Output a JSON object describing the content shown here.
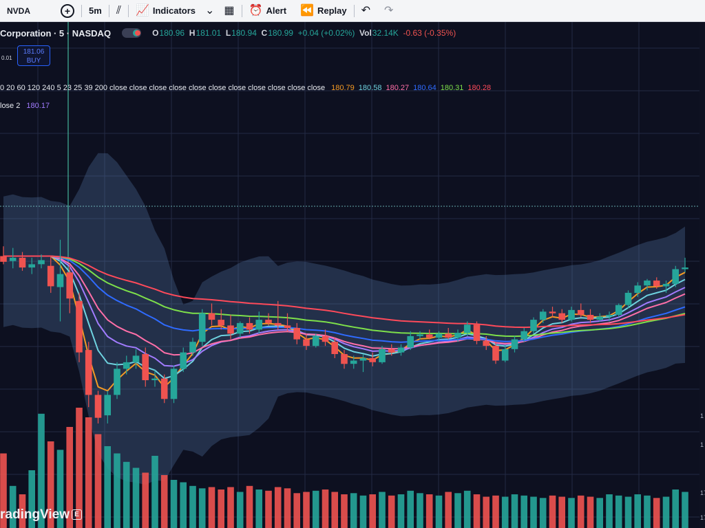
{
  "toolbar": {
    "symbol": "NVDA",
    "interval": "5m",
    "indicators_label": "Indicators",
    "alert_label": "Alert",
    "replay_label": "Replay"
  },
  "legend": {
    "title": "Corporation · 5 · NASDAQ",
    "open_label": "O",
    "open": "180.96",
    "high_label": "H",
    "high": "181.01",
    "low_label": "L",
    "low": "180.94",
    "close_label": "C",
    "close": "180.99",
    "change": "+0.04 (+0.02%)",
    "vol_label": "Vol",
    "vol": "32.14K",
    "change2": "-0.63 (-0.35%)"
  },
  "buy_box": {
    "price": "181.06",
    "label": "BUY"
  },
  "left_price": "0.01",
  "indicator_legend": {
    "params": "0 20 60 120 240 5 23 25 39 200 close close close close close close close close close close close",
    "values": [
      {
        "value": "180.79",
        "color": "#f59a23"
      },
      {
        "value": "180.58",
        "color": "#6fd3e0"
      },
      {
        "value": "180.27",
        "color": "#ff6fa8"
      },
      {
        "value": "180.64",
        "color": "#2f6bff"
      },
      {
        "value": "180.31",
        "color": "#7ee04a"
      },
      {
        "value": "180.28",
        "color": "#ff4a5a"
      }
    ],
    "row3_label": "lose 2",
    "row3_value": "180.17",
    "row3_color": "#a27cff"
  },
  "watermark": {
    "text": "radingView",
    "badge": "E"
  },
  "axis_labels": [
    "1",
    "1",
    "17",
    "17"
  ],
  "colors": {
    "background": "#0d1020",
    "bull": "#26a69a",
    "bear": "#ef5350",
    "band": "#5f86b8"
  },
  "chart_data": {
    "type": "candlestick",
    "symbol": "NVDA",
    "interval": "5m",
    "ylim": [
      179.0,
      182.2
    ],
    "candles": [
      {
        "o": 181.0,
        "h": 181.12,
        "l": 180.9,
        "c": 180.93
      },
      {
        "o": 180.94,
        "h": 181.1,
        "l": 180.85,
        "c": 180.98
      },
      {
        "o": 180.98,
        "h": 181.05,
        "l": 180.82,
        "c": 180.86
      },
      {
        "o": 180.86,
        "h": 180.98,
        "l": 180.78,
        "c": 180.9
      },
      {
        "o": 180.9,
        "h": 181.02,
        "l": 180.85,
        "c": 180.95
      },
      {
        "o": 180.88,
        "h": 181.0,
        "l": 180.55,
        "c": 180.63
      },
      {
        "o": 180.62,
        "h": 181.2,
        "l": 180.2,
        "c": 180.78
      },
      {
        "o": 180.8,
        "h": 180.9,
        "l": 180.3,
        "c": 180.48
      },
      {
        "o": 180.45,
        "h": 180.55,
        "l": 179.7,
        "c": 179.82
      },
      {
        "o": 179.85,
        "h": 179.95,
        "l": 179.15,
        "c": 179.3
      },
      {
        "o": 179.3,
        "h": 179.35,
        "l": 178.95,
        "c": 179.02
      },
      {
        "o": 179.05,
        "h": 179.35,
        "l": 178.95,
        "c": 179.3
      },
      {
        "o": 179.3,
        "h": 179.7,
        "l": 179.25,
        "c": 179.62
      },
      {
        "o": 179.62,
        "h": 179.78,
        "l": 179.55,
        "c": 179.7
      },
      {
        "o": 179.7,
        "h": 179.86,
        "l": 179.62,
        "c": 179.78
      },
      {
        "o": 179.8,
        "h": 179.88,
        "l": 179.4,
        "c": 179.48
      },
      {
        "o": 179.48,
        "h": 179.6,
        "l": 179.4,
        "c": 179.5
      },
      {
        "o": 179.5,
        "h": 179.55,
        "l": 179.2,
        "c": 179.25
      },
      {
        "o": 179.25,
        "h": 179.66,
        "l": 179.2,
        "c": 179.62
      },
      {
        "o": 179.62,
        "h": 179.88,
        "l": 179.58,
        "c": 179.82
      },
      {
        "o": 179.82,
        "h": 180.0,
        "l": 179.78,
        "c": 179.95
      },
      {
        "o": 179.95,
        "h": 180.35,
        "l": 179.9,
        "c": 180.3
      },
      {
        "o": 180.3,
        "h": 180.42,
        "l": 180.15,
        "c": 180.22
      },
      {
        "o": 180.22,
        "h": 180.35,
        "l": 180.1,
        "c": 180.15
      },
      {
        "o": 180.15,
        "h": 180.28,
        "l": 179.98,
        "c": 180.05
      },
      {
        "o": 180.05,
        "h": 180.2,
        "l": 180.0,
        "c": 180.18
      },
      {
        "o": 180.18,
        "h": 180.25,
        "l": 180.05,
        "c": 180.1
      },
      {
        "o": 180.1,
        "h": 180.32,
        "l": 180.05,
        "c": 180.22
      },
      {
        "o": 180.22,
        "h": 180.3,
        "l": 180.15,
        "c": 180.18
      },
      {
        "o": 180.18,
        "h": 180.45,
        "l": 180.1,
        "c": 180.15
      },
      {
        "o": 180.15,
        "h": 180.3,
        "l": 180.08,
        "c": 180.12
      },
      {
        "o": 180.12,
        "h": 180.18,
        "l": 179.92,
        "c": 179.98
      },
      {
        "o": 179.98,
        "h": 180.05,
        "l": 179.85,
        "c": 179.9
      },
      {
        "o": 179.9,
        "h": 180.05,
        "l": 179.88,
        "c": 180.02
      },
      {
        "o": 180.02,
        "h": 180.1,
        "l": 179.9,
        "c": 179.95
      },
      {
        "o": 179.95,
        "h": 180.0,
        "l": 179.75,
        "c": 179.8
      },
      {
        "o": 179.8,
        "h": 179.85,
        "l": 179.62,
        "c": 179.68
      },
      {
        "o": 179.68,
        "h": 179.78,
        "l": 179.62,
        "c": 179.72
      },
      {
        "o": 179.72,
        "h": 179.8,
        "l": 179.58,
        "c": 179.75
      },
      {
        "o": 179.75,
        "h": 179.82,
        "l": 179.65,
        "c": 179.7
      },
      {
        "o": 179.7,
        "h": 179.9,
        "l": 179.68,
        "c": 179.86
      },
      {
        "o": 179.86,
        "h": 179.92,
        "l": 179.78,
        "c": 179.82
      },
      {
        "o": 179.82,
        "h": 179.92,
        "l": 179.78,
        "c": 179.88
      },
      {
        "o": 179.88,
        "h": 180.08,
        "l": 179.85,
        "c": 180.02
      },
      {
        "o": 180.02,
        "h": 180.08,
        "l": 179.98,
        "c": 180.04
      },
      {
        "o": 180.04,
        "h": 180.1,
        "l": 179.98,
        "c": 180.0
      },
      {
        "o": 180.0,
        "h": 180.08,
        "l": 179.95,
        "c": 180.05
      },
      {
        "o": 180.05,
        "h": 180.12,
        "l": 179.98,
        "c": 180.0
      },
      {
        "o": 180.0,
        "h": 180.1,
        "l": 179.95,
        "c": 180.06
      },
      {
        "o": 180.06,
        "h": 180.2,
        "l": 180.02,
        "c": 180.16
      },
      {
        "o": 180.16,
        "h": 180.2,
        "l": 179.92,
        "c": 179.96
      },
      {
        "o": 179.96,
        "h": 180.02,
        "l": 179.85,
        "c": 179.9
      },
      {
        "o": 179.9,
        "h": 179.95,
        "l": 179.68,
        "c": 179.72
      },
      {
        "o": 179.72,
        "h": 179.9,
        "l": 179.7,
        "c": 179.86
      },
      {
        "o": 179.86,
        "h": 180.02,
        "l": 179.82,
        "c": 179.98
      },
      {
        "o": 179.98,
        "h": 180.12,
        "l": 179.95,
        "c": 180.08
      },
      {
        "o": 180.08,
        "h": 180.25,
        "l": 180.05,
        "c": 180.22
      },
      {
        "o": 180.22,
        "h": 180.35,
        "l": 180.18,
        "c": 180.32
      },
      {
        "o": 180.32,
        "h": 180.38,
        "l": 180.25,
        "c": 180.3
      },
      {
        "o": 180.3,
        "h": 180.35,
        "l": 180.18,
        "c": 180.22
      },
      {
        "o": 180.22,
        "h": 180.38,
        "l": 180.2,
        "c": 180.34
      },
      {
        "o": 180.34,
        "h": 180.42,
        "l": 180.25,
        "c": 180.28
      },
      {
        "o": 180.28,
        "h": 180.35,
        "l": 180.18,
        "c": 180.22
      },
      {
        "o": 180.22,
        "h": 180.3,
        "l": 180.2,
        "c": 180.26
      },
      {
        "o": 180.26,
        "h": 180.32,
        "l": 180.2,
        "c": 180.28
      },
      {
        "o": 180.28,
        "h": 180.42,
        "l": 180.25,
        "c": 180.4
      },
      {
        "o": 180.4,
        "h": 180.58,
        "l": 180.36,
        "c": 180.55
      },
      {
        "o": 180.55,
        "h": 180.68,
        "l": 180.5,
        "c": 180.64
      },
      {
        "o": 180.64,
        "h": 180.72,
        "l": 180.58,
        "c": 180.7
      },
      {
        "o": 180.7,
        "h": 180.74,
        "l": 180.6,
        "c": 180.63
      },
      {
        "o": 180.63,
        "h": 180.7,
        "l": 180.55,
        "c": 180.66
      },
      {
        "o": 180.66,
        "h": 180.88,
        "l": 180.62,
        "c": 180.84
      },
      {
        "o": 180.84,
        "h": 180.98,
        "l": 180.8,
        "c": 180.86
      }
    ],
    "volume": [
      0.62,
      0.35,
      0.28,
      0.48,
      0.95,
      0.72,
      0.65,
      0.84,
      1.0,
      0.92,
      0.78,
      0.68,
      0.62,
      0.55,
      0.5,
      0.46,
      0.6,
      0.44,
      0.4,
      0.38,
      0.35,
      0.33,
      0.34,
      0.32,
      0.34,
      0.3,
      0.35,
      0.32,
      0.31,
      0.34,
      0.33,
      0.29,
      0.3,
      0.31,
      0.32,
      0.3,
      0.28,
      0.29,
      0.27,
      0.28,
      0.3,
      0.27,
      0.28,
      0.31,
      0.29,
      0.28,
      0.27,
      0.3,
      0.29,
      0.31,
      0.28,
      0.26,
      0.27,
      0.26,
      0.28,
      0.27,
      0.26,
      0.25,
      0.27,
      0.26,
      0.25,
      0.27,
      0.26,
      0.25,
      0.28,
      0.27,
      0.26,
      0.28,
      0.27,
      0.25,
      0.26,
      0.32,
      0.3
    ]
  }
}
